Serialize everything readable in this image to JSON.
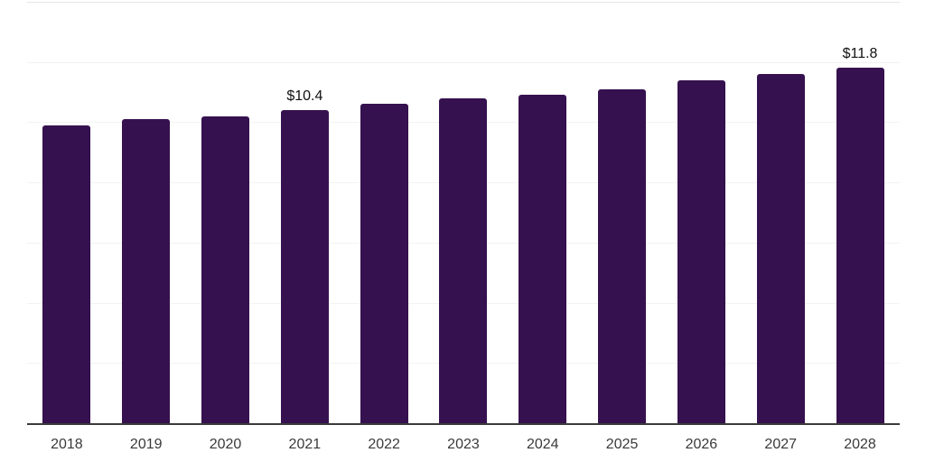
{
  "chart_data": {
    "type": "bar",
    "title": "",
    "xlabel": "",
    "ylabel": "",
    "categories": [
      "2018",
      "2019",
      "2020",
      "2021",
      "2022",
      "2023",
      "2024",
      "2025",
      "2026",
      "2027",
      "2028"
    ],
    "values": [
      9.9,
      10.1,
      10.2,
      10.4,
      10.6,
      10.8,
      10.9,
      11.1,
      11.4,
      11.6,
      11.8
    ],
    "labeled_points": [
      {
        "category": "2021",
        "label": "$10.4"
      },
      {
        "category": "2028",
        "label": "$11.8"
      }
    ],
    "ylim": [
      0,
      14
    ],
    "gridline_step": 2,
    "grid": "horizontal-only",
    "y_tick_labels_visible": false,
    "legend": "none",
    "colors": {
      "bar": "#36114F",
      "axis_line": "#3a3a3a",
      "gridline": "#f2f2f2",
      "top_gridline": "#e6e6e6",
      "tick_label": "#3a3a3a",
      "value_label": "#111111",
      "background": "#ffffff"
    }
  }
}
